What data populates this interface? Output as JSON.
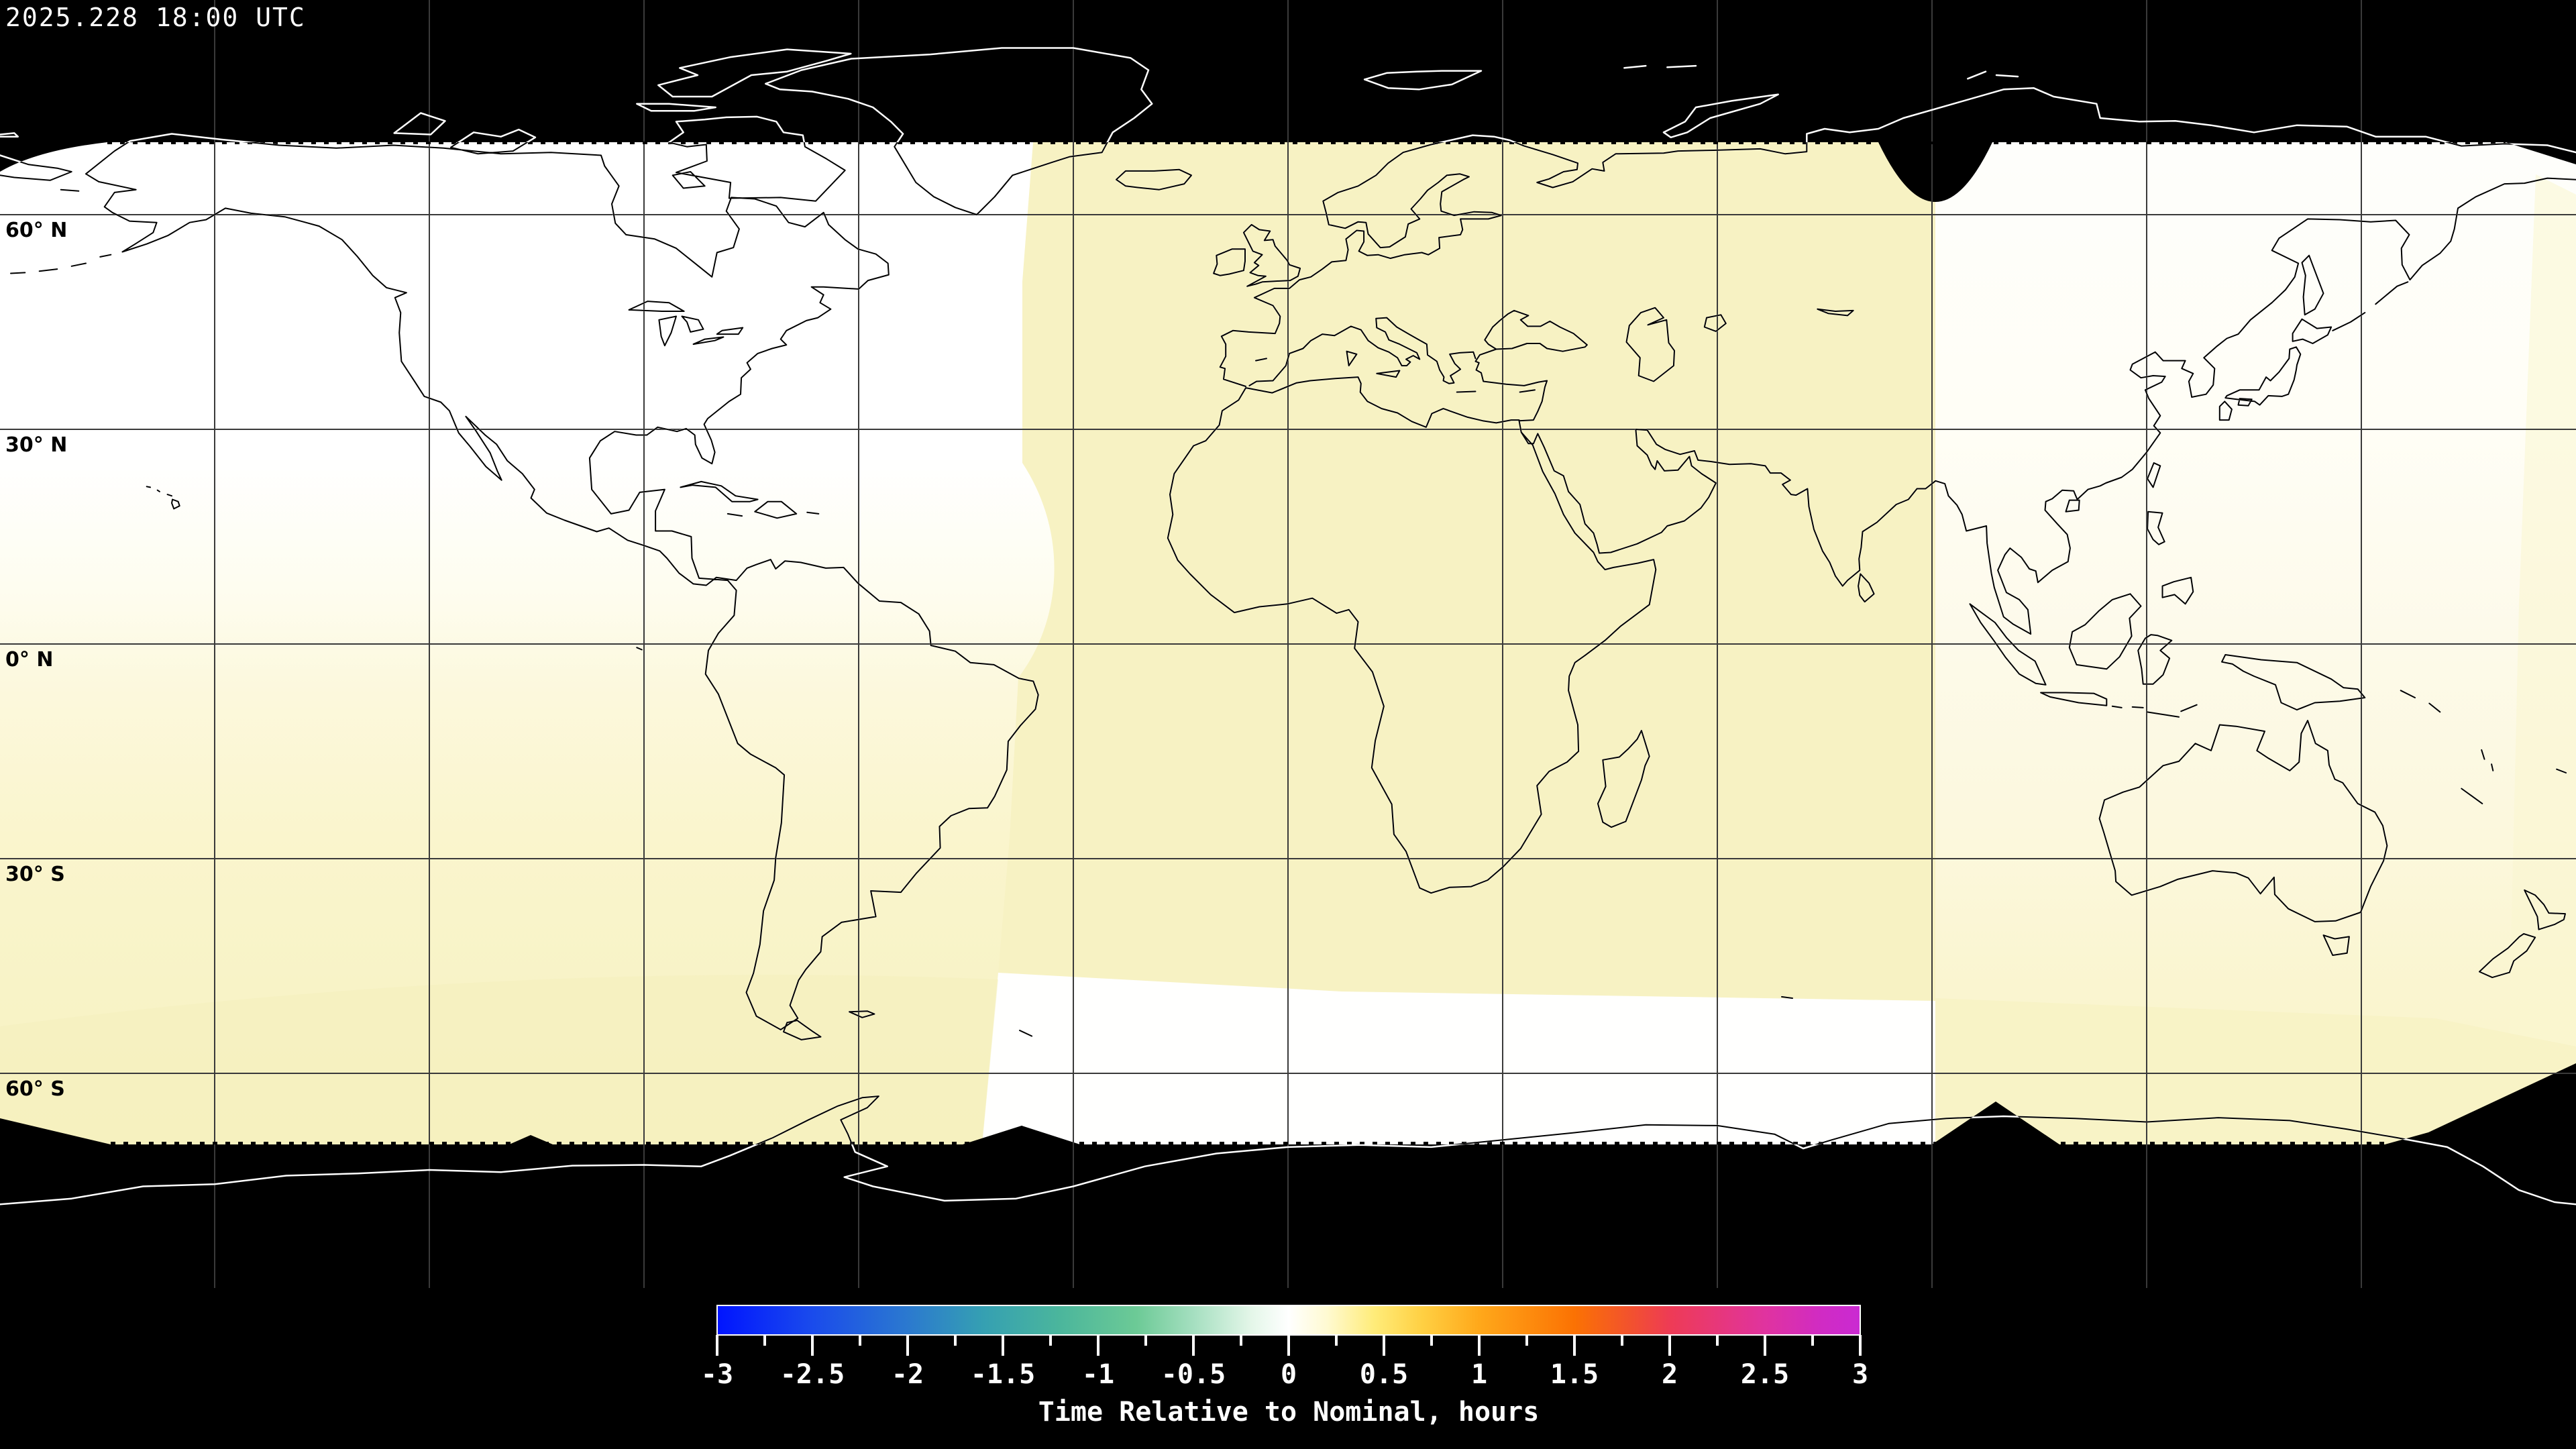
{
  "header": {
    "timestamp": "2025.228 18:00 UTC"
  },
  "map": {
    "projection": "equirectangular",
    "lat_labels": [
      "60° N",
      "30° N",
      "0° N",
      "30° S",
      "60° S"
    ],
    "lon_gridline_spacing_deg": 30,
    "lat_gridline_spacing_deg": 30,
    "no_data_color": "#000000",
    "coastline_color_over_data": "#000000",
    "coastline_color_over_nodata": "#ffffff"
  },
  "chart_data": {
    "type": "heatmap",
    "title": "",
    "timestamp": "2025.228 18:00 UTC",
    "grid": "on",
    "legend_position": "bottom",
    "colorbar": {
      "label": "Time Relative to Nominal, hours",
      "range": [
        -3,
        3
      ],
      "tick_labels": [
        "-3",
        "-2.5",
        "-2",
        "-1.5",
        "-1",
        "-0.5",
        "0",
        "0.5",
        "1",
        "1.5",
        "2",
        "2.5",
        "3"
      ],
      "major_tick_step": 0.5,
      "minor_tick_step": 0.25,
      "gradient_stops": [
        {
          "value": -3,
          "color": "#0014ff"
        },
        {
          "value": -2.5,
          "color": "#1a4bec"
        },
        {
          "value": -2,
          "color": "#2b79cf"
        },
        {
          "value": -1.6,
          "color": "#35a0b2"
        },
        {
          "value": -1.2,
          "color": "#4bb69c"
        },
        {
          "value": -0.8,
          "color": "#6cca96"
        },
        {
          "value": -0.5,
          "color": "#a5dfc0"
        },
        {
          "value": -0.2,
          "color": "#e3f6e8"
        },
        {
          "value": 0,
          "color": "#ffffff"
        },
        {
          "value": 0.2,
          "color": "#fffad2"
        },
        {
          "value": 0.45,
          "color": "#ffec79"
        },
        {
          "value": 0.7,
          "color": "#ffd043"
        },
        {
          "value": 1,
          "color": "#ffa81a"
        },
        {
          "value": 1.5,
          "color": "#fb7203"
        },
        {
          "value": 1.8,
          "color": "#f2512f"
        },
        {
          "value": 2,
          "color": "#ee3b55"
        },
        {
          "value": 2.5,
          "color": "#e0339f"
        },
        {
          "value": 2.8,
          "color": "#d02bc4"
        },
        {
          "value": 3,
          "color": "#ca2ad2"
        }
      ]
    },
    "coverage_band": {
      "north_lat_limit": 70,
      "south_lat_limit": -70
    },
    "regions": [
      {
        "area": "Americas / eastern Pacific sector",
        "approx_value_hours": "0 in north, rising to about +0.3 (white shading to pale yellow southward)"
      },
      {
        "area": "Europe / Africa sector",
        "approx_value_hours": "+0.3 (pale yellow)"
      },
      {
        "area": "South Atlantic / SW Indian Ocean south of Africa block",
        "approx_value_hours": "0 (white)"
      },
      {
        "area": "East Asia / Australia sector",
        "approx_value_hours": "0 in north, about +0.2 to +0.3 toward south (cream to pale yellow)"
      },
      {
        "area": "Polar caps and scallop gaps",
        "approx_value_hours": "no data (black)"
      }
    ]
  }
}
